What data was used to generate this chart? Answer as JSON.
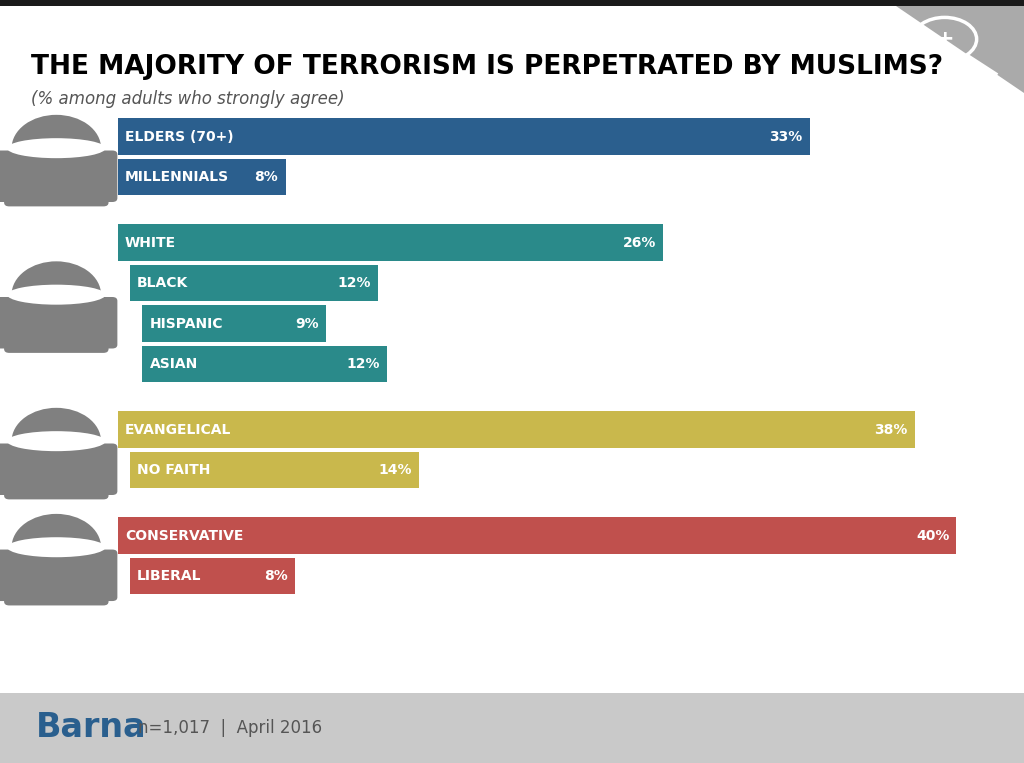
{
  "title": "THE MAJORITY OF TERRORISM IS PERPETRATED BY MUSLIMS?",
  "subtitle": "(% among adults who strongly agree)",
  "footer": "n=1,017  |  April 2016",
  "barna_text": "Barna",
  "background_color": "#ffffff",
  "footer_background": "#c9c9c9",
  "top_bar_color": "#1a1a1a",
  "groups": [
    {
      "bars": [
        {
          "label": "ELDERS (70+)",
          "value": 33,
          "color": "#2b5f8e",
          "indent": 0
        },
        {
          "label": "MILLENNIALS",
          "value": 8,
          "color": "#2b5f8e",
          "indent": 0
        }
      ]
    },
    {
      "bars": [
        {
          "label": "WHITE",
          "value": 26,
          "color": "#2a8a8a",
          "indent": 0
        },
        {
          "label": "BLACK",
          "value": 12,
          "color": "#2a8a8a",
          "indent": 1
        },
        {
          "label": "HISPANIC",
          "value": 9,
          "color": "#2a8a8a",
          "indent": 2
        },
        {
          "label": "ASIAN",
          "value": 12,
          "color": "#2a8a8a",
          "indent": 2
        }
      ]
    },
    {
      "bars": [
        {
          "label": "EVANGELICAL",
          "value": 38,
          "color": "#c9b84c",
          "indent": 0
        },
        {
          "label": "NO FAITH",
          "value": 14,
          "color": "#c9b84c",
          "indent": 1
        }
      ]
    },
    {
      "bars": [
        {
          "label": "CONSERVATIVE",
          "value": 40,
          "color": "#c0504d",
          "indent": 0
        },
        {
          "label": "LIBERAL",
          "value": 8,
          "color": "#c0504d",
          "indent": 1
        }
      ]
    }
  ],
  "max_value": 42,
  "person_color": "#808080",
  "title_color": "#000000",
  "subtitle_color": "#555555",
  "barna_color": "#2a5f8e"
}
